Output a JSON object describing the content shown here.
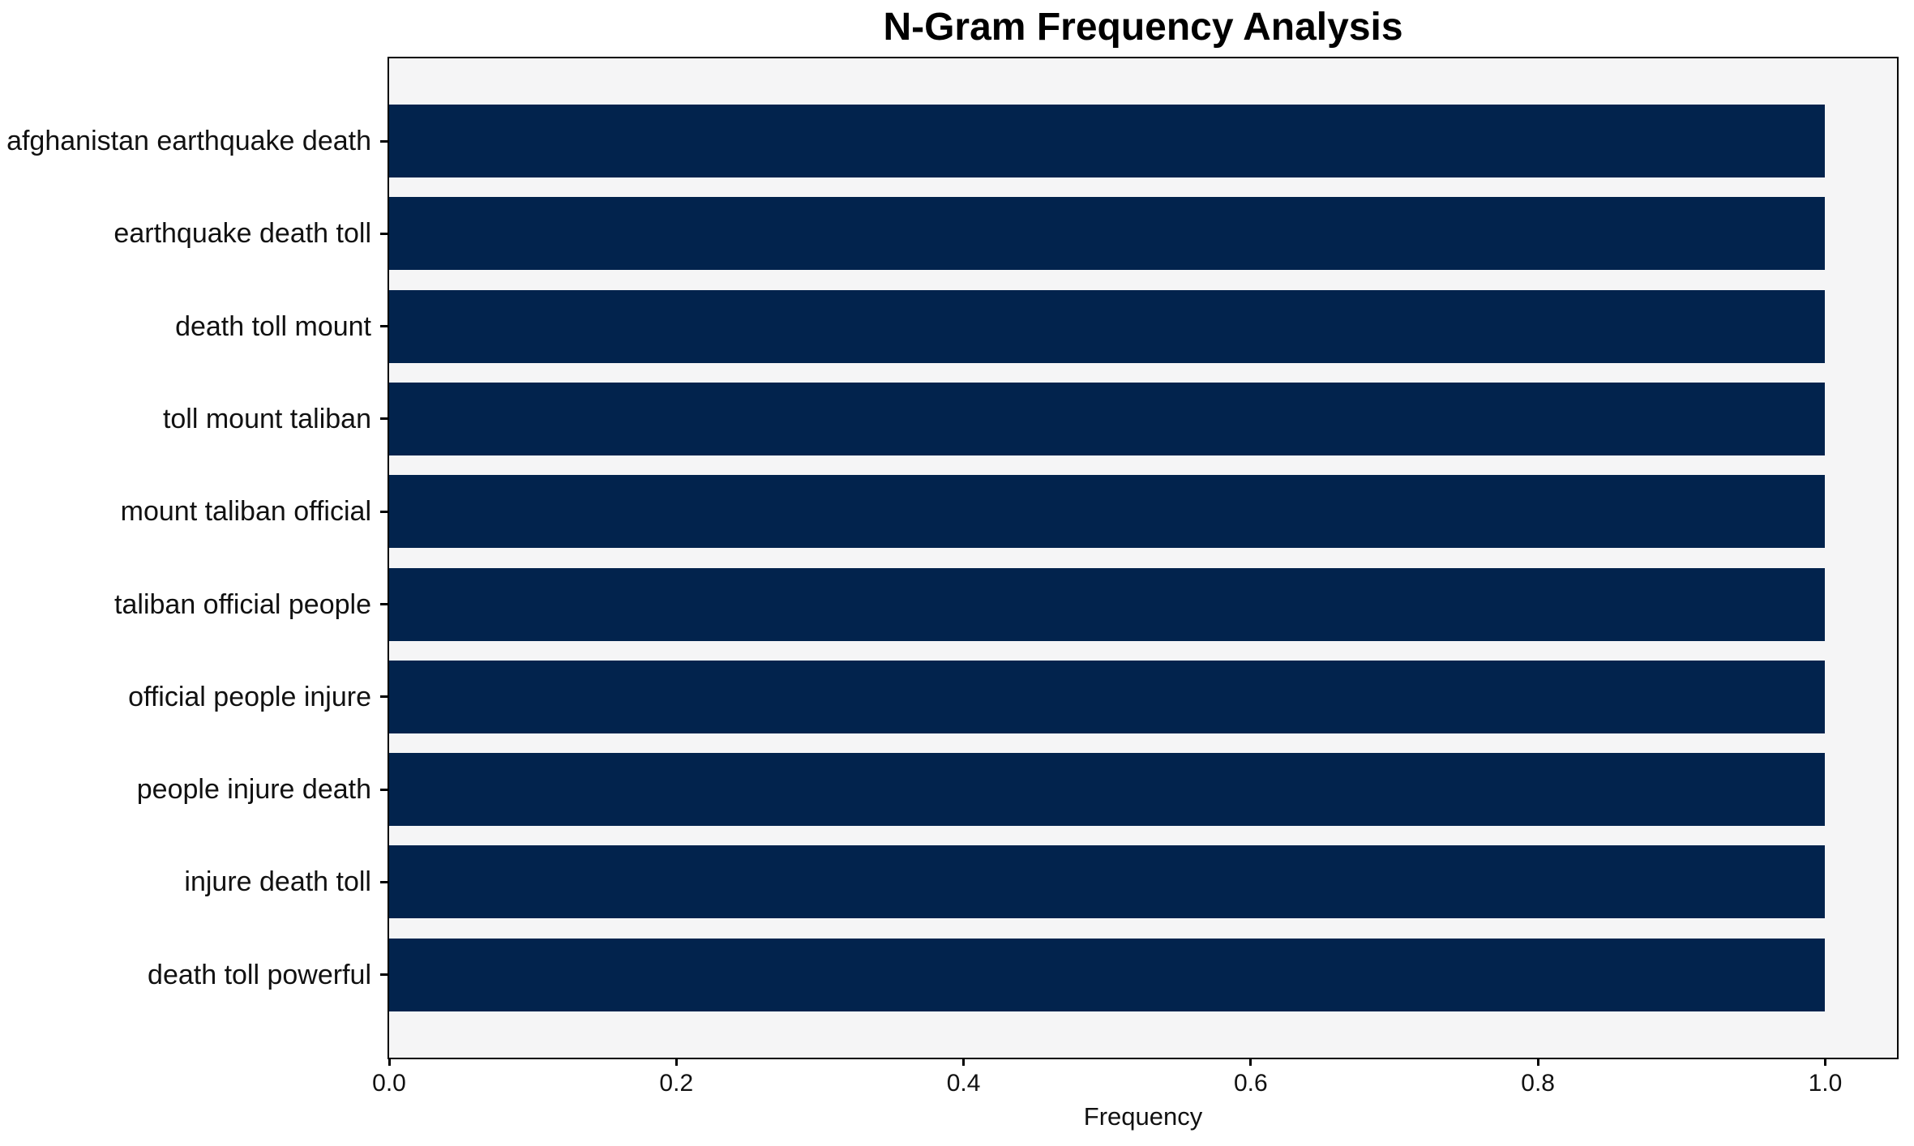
{
  "chart_data": {
    "type": "bar",
    "orientation": "horizontal",
    "title": "N-Gram Frequency Analysis",
    "xlabel": "Frequency",
    "ylabel": "",
    "categories": [
      "afghanistan earthquake death",
      "earthquake death toll",
      "death toll mount",
      "toll mount taliban",
      "mount taliban official",
      "taliban official people",
      "official people injure",
      "people injure death",
      "injure death toll",
      "death toll powerful"
    ],
    "values": [
      1.0,
      1.0,
      1.0,
      1.0,
      1.0,
      1.0,
      1.0,
      1.0,
      1.0,
      1.0
    ],
    "xlim": [
      0,
      1.05
    ],
    "xticks": [
      {
        "value": 0.0,
        "label": "0.0"
      },
      {
        "value": 0.2,
        "label": "0.2"
      },
      {
        "value": 0.4,
        "label": "0.4"
      },
      {
        "value": 0.6,
        "label": "0.6"
      },
      {
        "value": 0.8,
        "label": "0.8"
      },
      {
        "value": 1.0,
        "label": "1.0"
      }
    ],
    "grid": false,
    "legend": null,
    "colors": {
      "bar": "#02234d",
      "plot_background": "#f5f5f6",
      "figure_background": "#ffffff",
      "spine": "#000000",
      "text": "#111111"
    }
  }
}
